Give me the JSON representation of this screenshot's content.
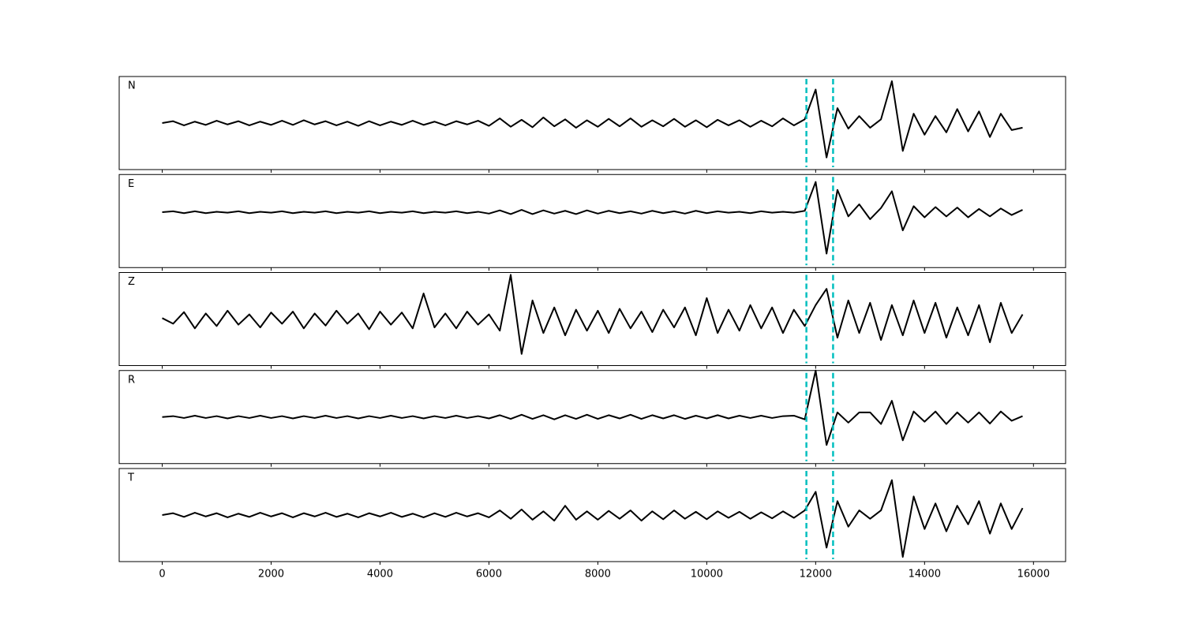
{
  "chart_data": {
    "type": "line",
    "x": [
      0,
      200,
      400,
      600,
      800,
      1000,
      1200,
      1400,
      1600,
      1800,
      2000,
      2200,
      2400,
      2600,
      2800,
      3000,
      3200,
      3400,
      3600,
      3800,
      4000,
      4200,
      4400,
      4600,
      4800,
      5000,
      5200,
      5400,
      5600,
      5800,
      6000,
      6200,
      6400,
      6600,
      6800,
      7000,
      7200,
      7400,
      7600,
      7800,
      8000,
      8200,
      8400,
      8600,
      8800,
      9000,
      9200,
      9400,
      9600,
      9800,
      10000,
      10200,
      10400,
      10600,
      10800,
      11000,
      11200,
      11400,
      11600,
      11800,
      12000,
      12200,
      12400,
      12600,
      12800,
      13000,
      13200,
      13400,
      13600,
      13800,
      14000,
      14200,
      14400,
      14600,
      14800,
      15000,
      15200,
      15400,
      15600,
      15800
    ],
    "xlim": [
      -790,
      16590
    ],
    "xticks": [
      0,
      2000,
      4000,
      6000,
      8000,
      10000,
      12000,
      14000,
      16000
    ],
    "ylim": [
      -1,
      1
    ],
    "markers": [
      11830,
      12320
    ],
    "marker_color": "#00bfbf",
    "series": [
      {
        "name": "N",
        "color": "#000000",
        "values": [
          0,
          0.04,
          -0.05,
          0.03,
          -0.04,
          0.05,
          -0.03,
          0.04,
          -0.05,
          0.03,
          -0.04,
          0.05,
          -0.04,
          0.06,
          -0.03,
          0.04,
          -0.05,
          0.03,
          -0.06,
          0.04,
          -0.05,
          0.03,
          -0.04,
          0.05,
          -0.04,
          0.03,
          -0.05,
          0.04,
          -0.03,
          0.05,
          -0.06,
          0.1,
          -0.08,
          0.07,
          -0.09,
          0.12,
          -0.07,
          0.08,
          -0.1,
          0.06,
          -0.08,
          0.09,
          -0.07,
          0.1,
          -0.08,
          0.06,
          -0.07,
          0.09,
          -0.08,
          0.06,
          -0.09,
          0.07,
          -0.05,
          0.06,
          -0.08,
          0.05,
          -0.07,
          0.1,
          -0.05,
          0.08,
          0.72,
          -0.74,
          0.32,
          -0.12,
          0.15,
          -0.1,
          0.08,
          0.9,
          -0.6,
          0.2,
          -0.25,
          0.15,
          -0.2,
          0.3,
          -0.18,
          0.25,
          -0.3,
          0.2,
          -0.15,
          -0.1
        ]
      },
      {
        "name": "E",
        "color": "#000000",
        "values": [
          0.19,
          0.21,
          0.17,
          0.21,
          0.17,
          0.2,
          0.18,
          0.21,
          0.17,
          0.2,
          0.18,
          0.21,
          0.17,
          0.2,
          0.18,
          0.21,
          0.17,
          0.2,
          0.18,
          0.21,
          0.17,
          0.2,
          0.18,
          0.21,
          0.17,
          0.2,
          0.18,
          0.21,
          0.17,
          0.2,
          0.16,
          0.23,
          0.15,
          0.24,
          0.15,
          0.23,
          0.16,
          0.22,
          0.15,
          0.23,
          0.16,
          0.22,
          0.17,
          0.21,
          0.16,
          0.22,
          0.17,
          0.21,
          0.16,
          0.22,
          0.17,
          0.21,
          0.18,
          0.2,
          0.17,
          0.21,
          0.18,
          0.2,
          0.18,
          0.22,
          0.84,
          -0.7,
          0.67,
          0.1,
          0.36,
          0.04,
          0.28,
          0.64,
          -0.2,
          0.32,
          0.08,
          0.3,
          0.1,
          0.29,
          0.08,
          0.26,
          0.1,
          0.27,
          0.13,
          0.24
        ]
      },
      {
        "name": "Z",
        "color": "#000000",
        "values": [
          0.02,
          -0.1,
          0.15,
          -0.2,
          0.12,
          -0.15,
          0.18,
          -0.12,
          0.1,
          -0.18,
          0.14,
          -0.1,
          0.16,
          -0.2,
          0.12,
          -0.14,
          0.18,
          -0.1,
          0.12,
          -0.22,
          0.16,
          -0.12,
          0.14,
          -0.2,
          0.55,
          -0.18,
          0.12,
          -0.2,
          0.16,
          -0.12,
          0.1,
          -0.25,
          0.95,
          -0.75,
          0.4,
          -0.3,
          0.25,
          -0.35,
          0.2,
          -0.25,
          0.18,
          -0.3,
          0.22,
          -0.2,
          0.16,
          -0.28,
          0.2,
          -0.18,
          0.25,
          -0.35,
          0.45,
          -0.3,
          0.2,
          -0.25,
          0.3,
          -0.2,
          0.25,
          -0.3,
          0.2,
          -0.15,
          0.3,
          0.65,
          -0.4,
          0.4,
          -0.3,
          0.35,
          -0.45,
          0.3,
          -0.35,
          0.4,
          -0.3,
          0.35,
          -0.4,
          0.25,
          -0.35,
          0.3,
          -0.5,
          0.35,
          -0.3,
          0.1
        ]
      },
      {
        "name": "R",
        "color": "#000000",
        "values": [
          0,
          0.02,
          -0.02,
          0.03,
          -0.02,
          0.02,
          -0.03,
          0.02,
          -0.02,
          0.03,
          -0.02,
          0.02,
          -0.03,
          0.02,
          -0.02,
          0.03,
          -0.02,
          0.02,
          -0.03,
          0.02,
          -0.02,
          0.03,
          -0.02,
          0.02,
          -0.03,
          0.02,
          -0.02,
          0.03,
          -0.02,
          0.02,
          -0.03,
          0.04,
          -0.04,
          0.05,
          -0.04,
          0.04,
          -0.05,
          0.04,
          -0.04,
          0.05,
          -0.04,
          0.04,
          -0.03,
          0.05,
          -0.04,
          0.04,
          -0.03,
          0.04,
          -0.04,
          0.03,
          -0.03,
          0.04,
          -0.03,
          0.03,
          -0.02,
          0.03,
          -0.02,
          0.02,
          0.03,
          -0.05,
          1.0,
          -0.6,
          0.1,
          -0.12,
          0.1,
          0.1,
          -0.15,
          0.35,
          -0.5,
          0.12,
          -0.1,
          0.12,
          -0.15,
          0.1,
          -0.12,
          0.1,
          -0.14,
          0.12,
          -0.08,
          0.02
        ]
      },
      {
        "name": "T",
        "color": "#000000",
        "values": [
          0,
          0.04,
          -0.04,
          0.05,
          -0.03,
          0.04,
          -0.05,
          0.03,
          -0.04,
          0.05,
          -0.03,
          0.04,
          -0.05,
          0.04,
          -0.03,
          0.05,
          -0.04,
          0.03,
          -0.05,
          0.04,
          -0.03,
          0.05,
          -0.04,
          0.03,
          -0.05,
          0.04,
          -0.04,
          0.05,
          -0.03,
          0.04,
          -0.05,
          0.1,
          -0.08,
          0.12,
          -0.1,
          0.08,
          -0.12,
          0.2,
          -0.1,
          0.08,
          -0.1,
          0.09,
          -0.08,
          0.1,
          -0.12,
          0.08,
          -0.09,
          0.1,
          -0.08,
          0.07,
          -0.09,
          0.08,
          -0.06,
          0.07,
          -0.08,
          0.06,
          -0.07,
          0.08,
          -0.06,
          0.1,
          0.5,
          -0.7,
          0.3,
          -0.25,
          0.1,
          -0.08,
          0.1,
          0.75,
          -0.9,
          0.4,
          -0.3,
          0.25,
          -0.35,
          0.2,
          -0.2,
          0.3,
          -0.4,
          0.25,
          -0.3,
          0.15
        ]
      }
    ]
  }
}
